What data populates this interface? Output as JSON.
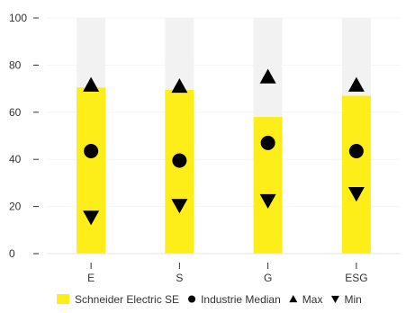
{
  "chart_data": {
    "type": "bar",
    "categories": [
      "E",
      "S",
      "G",
      "ESG"
    ],
    "ylim": [
      0,
      100
    ],
    "yticks": [
      0,
      20,
      40,
      60,
      80,
      100
    ],
    "background_max": 100,
    "series": [
      {
        "name": "Schneider Electric SE",
        "marker": "bar",
        "values": [
          70.5,
          69.5,
          58.0,
          67.0
        ]
      },
      {
        "name": "Industrie Median",
        "marker": "circle",
        "values": [
          43.5,
          39.5,
          47.0,
          43.5
        ]
      },
      {
        "name": "Max",
        "marker": "triangle-up",
        "values": [
          71.5,
          71.0,
          75.0,
          71.5
        ]
      },
      {
        "name": "Min",
        "marker": "triangle-down",
        "values": [
          15.5,
          20.5,
          22.5,
          25.5
        ]
      }
    ],
    "colors": {
      "bar": "#fdee1a",
      "background_bar": "#f2f2f2",
      "marker": "#000000",
      "text": "#333333",
      "axis": "#999999",
      "grid": "#f4f4f4"
    },
    "legend_placement": "bottom-center",
    "grid": true
  }
}
